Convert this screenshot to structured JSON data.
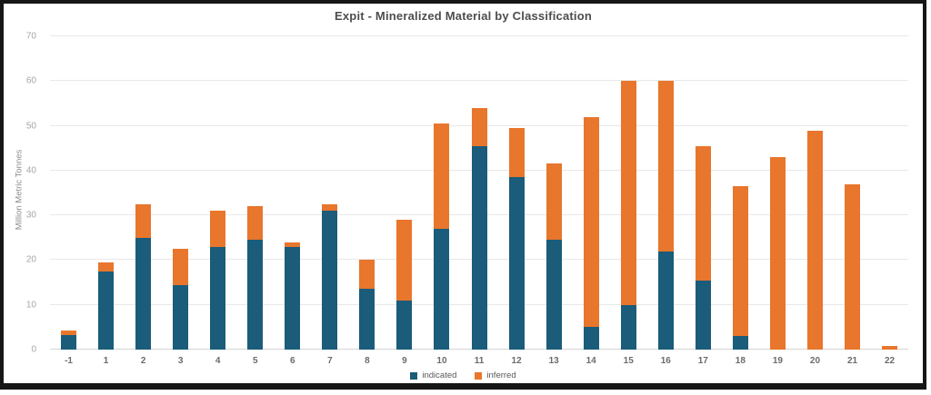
{
  "chart_data": {
    "type": "bar",
    "stacked": true,
    "title": "Expit - Mineralized Material by Classification",
    "xlabel": "",
    "ylabel": "Million Metric Tonnes",
    "ylim": [
      0,
      70
    ],
    "ytick_step": 10,
    "grid": true,
    "legend_position": "bottom",
    "categories": [
      "-1",
      "1",
      "2",
      "3",
      "4",
      "5",
      "6",
      "7",
      "8",
      "9",
      "10",
      "11",
      "12",
      "13",
      "14",
      "15",
      "16",
      "17",
      "18",
      "19",
      "20",
      "21",
      "22"
    ],
    "series": [
      {
        "name": "indicated",
        "color": "#1A5C7A",
        "values": [
          3.2,
          17.5,
          25,
          14.5,
          23,
          24.5,
          23,
          31,
          13.5,
          11,
          27,
          45.5,
          38.5,
          24.5,
          5,
          10,
          22,
          15.5,
          3,
          0,
          0,
          0,
          0
        ]
      },
      {
        "name": "inferred",
        "color": "#E8762C",
        "values": [
          1,
          2,
          7.5,
          8,
          8,
          7.5,
          1,
          1.5,
          6.5,
          18,
          23.5,
          8.5,
          11,
          17,
          47,
          50,
          38,
          30,
          33.5,
          43,
          49,
          37,
          0.8
        ]
      }
    ]
  },
  "frame": {
    "border_color": "#161616",
    "background": "#ffffff"
  }
}
